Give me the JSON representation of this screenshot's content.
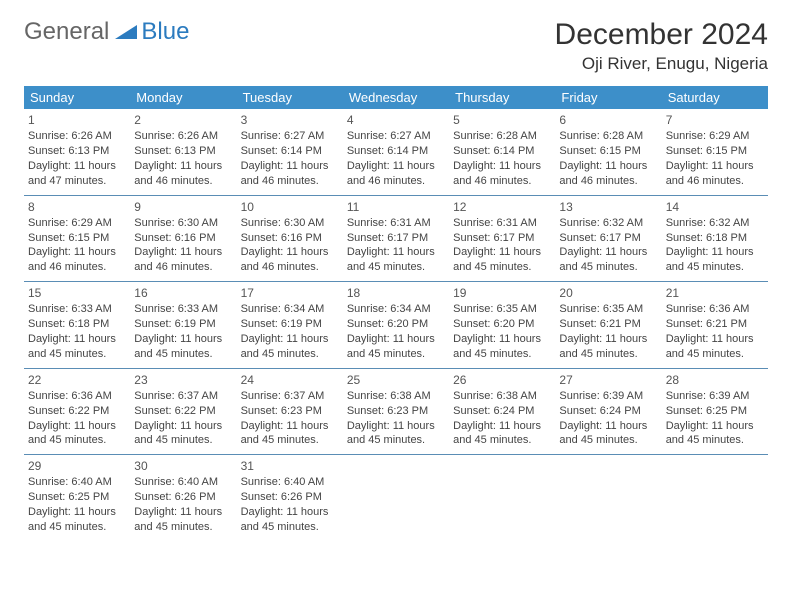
{
  "brand": {
    "part1": "General",
    "part2": "Blue"
  },
  "title": "December 2024",
  "location": "Oji River, Enugu, Nigeria",
  "colors": {
    "header_bg": "#3d8fc9",
    "header_text": "#ffffff",
    "row_divider": "#5a8db5",
    "body_text": "#444444",
    "brand_gray": "#666666",
    "brand_blue": "#2b7bbf"
  },
  "day_headers": [
    "Sunday",
    "Monday",
    "Tuesday",
    "Wednesday",
    "Thursday",
    "Friday",
    "Saturday"
  ],
  "weeks": [
    [
      {
        "n": "1",
        "sr": "Sunrise: 6:26 AM",
        "ss": "Sunset: 6:13 PM",
        "d1": "Daylight: 11 hours",
        "d2": "and 47 minutes."
      },
      {
        "n": "2",
        "sr": "Sunrise: 6:26 AM",
        "ss": "Sunset: 6:13 PM",
        "d1": "Daylight: 11 hours",
        "d2": "and 46 minutes."
      },
      {
        "n": "3",
        "sr": "Sunrise: 6:27 AM",
        "ss": "Sunset: 6:14 PM",
        "d1": "Daylight: 11 hours",
        "d2": "and 46 minutes."
      },
      {
        "n": "4",
        "sr": "Sunrise: 6:27 AM",
        "ss": "Sunset: 6:14 PM",
        "d1": "Daylight: 11 hours",
        "d2": "and 46 minutes."
      },
      {
        "n": "5",
        "sr": "Sunrise: 6:28 AM",
        "ss": "Sunset: 6:14 PM",
        "d1": "Daylight: 11 hours",
        "d2": "and 46 minutes."
      },
      {
        "n": "6",
        "sr": "Sunrise: 6:28 AM",
        "ss": "Sunset: 6:15 PM",
        "d1": "Daylight: 11 hours",
        "d2": "and 46 minutes."
      },
      {
        "n": "7",
        "sr": "Sunrise: 6:29 AM",
        "ss": "Sunset: 6:15 PM",
        "d1": "Daylight: 11 hours",
        "d2": "and 46 minutes."
      }
    ],
    [
      {
        "n": "8",
        "sr": "Sunrise: 6:29 AM",
        "ss": "Sunset: 6:15 PM",
        "d1": "Daylight: 11 hours",
        "d2": "and 46 minutes."
      },
      {
        "n": "9",
        "sr": "Sunrise: 6:30 AM",
        "ss": "Sunset: 6:16 PM",
        "d1": "Daylight: 11 hours",
        "d2": "and 46 minutes."
      },
      {
        "n": "10",
        "sr": "Sunrise: 6:30 AM",
        "ss": "Sunset: 6:16 PM",
        "d1": "Daylight: 11 hours",
        "d2": "and 46 minutes."
      },
      {
        "n": "11",
        "sr": "Sunrise: 6:31 AM",
        "ss": "Sunset: 6:17 PM",
        "d1": "Daylight: 11 hours",
        "d2": "and 45 minutes."
      },
      {
        "n": "12",
        "sr": "Sunrise: 6:31 AM",
        "ss": "Sunset: 6:17 PM",
        "d1": "Daylight: 11 hours",
        "d2": "and 45 minutes."
      },
      {
        "n": "13",
        "sr": "Sunrise: 6:32 AM",
        "ss": "Sunset: 6:17 PM",
        "d1": "Daylight: 11 hours",
        "d2": "and 45 minutes."
      },
      {
        "n": "14",
        "sr": "Sunrise: 6:32 AM",
        "ss": "Sunset: 6:18 PM",
        "d1": "Daylight: 11 hours",
        "d2": "and 45 minutes."
      }
    ],
    [
      {
        "n": "15",
        "sr": "Sunrise: 6:33 AM",
        "ss": "Sunset: 6:18 PM",
        "d1": "Daylight: 11 hours",
        "d2": "and 45 minutes."
      },
      {
        "n": "16",
        "sr": "Sunrise: 6:33 AM",
        "ss": "Sunset: 6:19 PM",
        "d1": "Daylight: 11 hours",
        "d2": "and 45 minutes."
      },
      {
        "n": "17",
        "sr": "Sunrise: 6:34 AM",
        "ss": "Sunset: 6:19 PM",
        "d1": "Daylight: 11 hours",
        "d2": "and 45 minutes."
      },
      {
        "n": "18",
        "sr": "Sunrise: 6:34 AM",
        "ss": "Sunset: 6:20 PM",
        "d1": "Daylight: 11 hours",
        "d2": "and 45 minutes."
      },
      {
        "n": "19",
        "sr": "Sunrise: 6:35 AM",
        "ss": "Sunset: 6:20 PM",
        "d1": "Daylight: 11 hours",
        "d2": "and 45 minutes."
      },
      {
        "n": "20",
        "sr": "Sunrise: 6:35 AM",
        "ss": "Sunset: 6:21 PM",
        "d1": "Daylight: 11 hours",
        "d2": "and 45 minutes."
      },
      {
        "n": "21",
        "sr": "Sunrise: 6:36 AM",
        "ss": "Sunset: 6:21 PM",
        "d1": "Daylight: 11 hours",
        "d2": "and 45 minutes."
      }
    ],
    [
      {
        "n": "22",
        "sr": "Sunrise: 6:36 AM",
        "ss": "Sunset: 6:22 PM",
        "d1": "Daylight: 11 hours",
        "d2": "and 45 minutes."
      },
      {
        "n": "23",
        "sr": "Sunrise: 6:37 AM",
        "ss": "Sunset: 6:22 PM",
        "d1": "Daylight: 11 hours",
        "d2": "and 45 minutes."
      },
      {
        "n": "24",
        "sr": "Sunrise: 6:37 AM",
        "ss": "Sunset: 6:23 PM",
        "d1": "Daylight: 11 hours",
        "d2": "and 45 minutes."
      },
      {
        "n": "25",
        "sr": "Sunrise: 6:38 AM",
        "ss": "Sunset: 6:23 PM",
        "d1": "Daylight: 11 hours",
        "d2": "and 45 minutes."
      },
      {
        "n": "26",
        "sr": "Sunrise: 6:38 AM",
        "ss": "Sunset: 6:24 PM",
        "d1": "Daylight: 11 hours",
        "d2": "and 45 minutes."
      },
      {
        "n": "27",
        "sr": "Sunrise: 6:39 AM",
        "ss": "Sunset: 6:24 PM",
        "d1": "Daylight: 11 hours",
        "d2": "and 45 minutes."
      },
      {
        "n": "28",
        "sr": "Sunrise: 6:39 AM",
        "ss": "Sunset: 6:25 PM",
        "d1": "Daylight: 11 hours",
        "d2": "and 45 minutes."
      }
    ],
    [
      {
        "n": "29",
        "sr": "Sunrise: 6:40 AM",
        "ss": "Sunset: 6:25 PM",
        "d1": "Daylight: 11 hours",
        "d2": "and 45 minutes."
      },
      {
        "n": "30",
        "sr": "Sunrise: 6:40 AM",
        "ss": "Sunset: 6:26 PM",
        "d1": "Daylight: 11 hours",
        "d2": "and 45 minutes."
      },
      {
        "n": "31",
        "sr": "Sunrise: 6:40 AM",
        "ss": "Sunset: 6:26 PM",
        "d1": "Daylight: 11 hours",
        "d2": "and 45 minutes."
      },
      null,
      null,
      null,
      null
    ]
  ]
}
